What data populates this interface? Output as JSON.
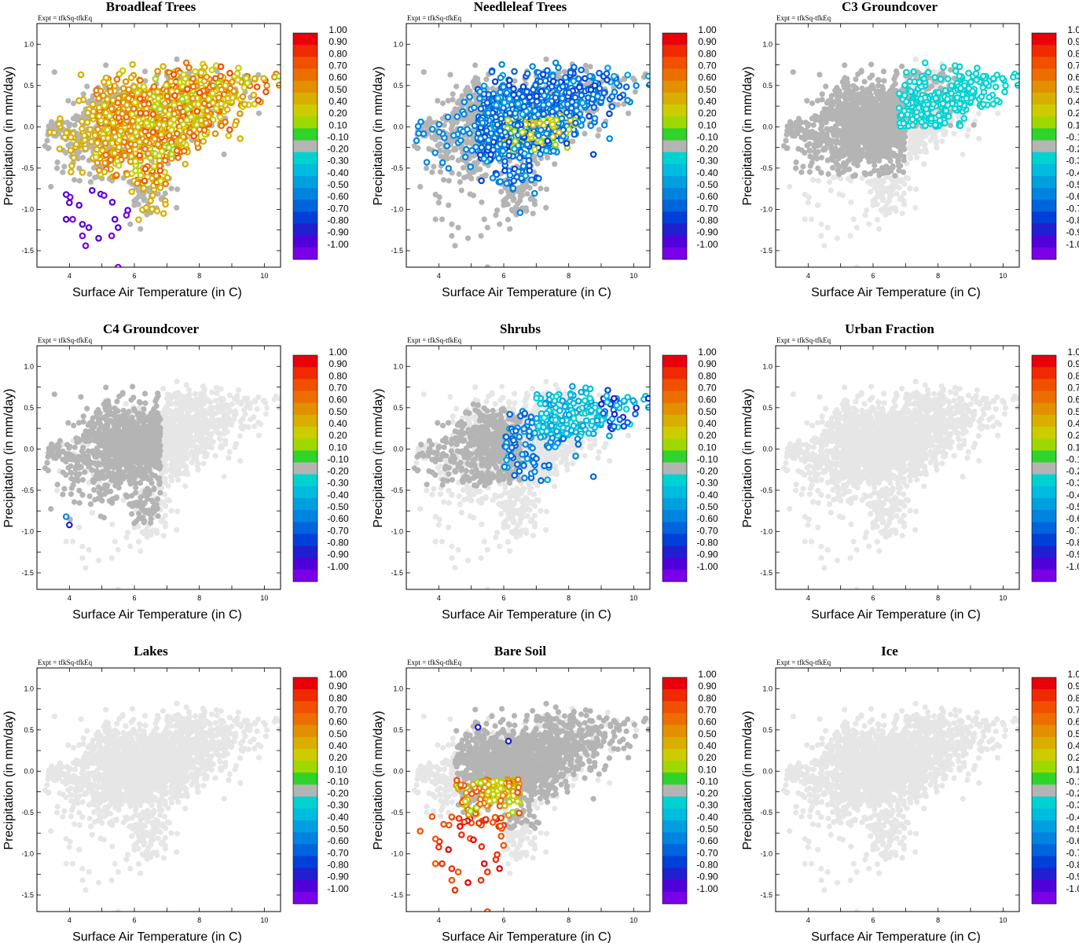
{
  "figure": {
    "expt_label": "Expt = tfkSq-tfkEq",
    "xlabel": "Surface Air Temperature (in C)",
    "ylabel": "Precipitation (in mm/day)",
    "xlim": [
      3,
      10.5
    ],
    "ylim": [
      -1.7,
      1.25
    ],
    "x_ticks": [
      "4",
      "6",
      "8",
      "10"
    ],
    "y_ticks": [
      "1.0",
      "0.5",
      "0.0",
      "-0.5",
      "-1.0",
      "-1.5"
    ],
    "colorbar": {
      "labels": [
        "1.00",
        "0.90",
        "0.80",
        "0.70",
        "0.60",
        "0.50",
        "0.40",
        "0.20",
        "0.10",
        "-0.10",
        "-0.20",
        "-0.30",
        "-0.40",
        "-0.50",
        "-0.60",
        "-0.70",
        "-0.80",
        "-0.90",
        "-1.00"
      ],
      "colors": [
        "#e8000b",
        "#f02a00",
        "#f05000",
        "#ec6e00",
        "#e29000",
        "#d8ae00",
        "#cccc00",
        "#9ed800",
        "#2ed42a",
        "#b4b4b4",
        "#00d2d2",
        "#00bcde",
        "#00a0e0",
        "#0084e0",
        "#0064dc",
        "#0040d8",
        "#2020d0",
        "#5000d8",
        "#7a00e8"
      ]
    },
    "background_color": "#e6e6e6",
    "neutral_color": "#b4b4b4"
  },
  "chart_data": [
    {
      "type": "scatter",
      "title": "Broadleaf Trees",
      "mode": "broadleaf",
      "xlabel": "Surface Air Temperature (in C)",
      "ylabel": "Precipitation (in mm/day)",
      "xlim": [
        3,
        10.5
      ],
      "ylim": [
        -1.7,
        1.25
      ],
      "legend": "right colorbar",
      "note": "Points colored by correlation; mostly positive (0.1-0.8) in warm core, strong negative (-0.8 to -1.0) at cold/dry outliers"
    },
    {
      "type": "scatter",
      "title": "Needleleaf Trees",
      "mode": "needleleaf",
      "xlabel": "Surface Air Temperature (in C)",
      "ylabel": "Precipitation (in mm/day)",
      "xlim": [
        3,
        10.5
      ],
      "ylim": [
        -1.7,
        1.25
      ],
      "legend": "right colorbar",
      "note": "Mostly negative correlations (-0.2 to -0.7) in the central cluster, some positive near (7, 0)"
    },
    {
      "type": "scatter",
      "title": "C3 Groundcover",
      "mode": "c3",
      "xlabel": "Surface Air Temperature (in C)",
      "ylabel": "Precipitation (in mm/day)",
      "xlim": [
        3,
        10.5
      ],
      "ylim": [
        -1.7,
        1.25
      ],
      "legend": "right colorbar",
      "note": "Mostly neutral (-0.1 to 0.1), weak negative (-0.2) scattered in warm wet region"
    },
    {
      "type": "scatter",
      "title": "C4 Groundcover",
      "mode": "c4",
      "xlabel": "Surface Air Temperature (in C)",
      "ylabel": "Precipitation (in mm/day)",
      "xlim": [
        3,
        10.5
      ],
      "ylim": [
        -1.7,
        1.25
      ],
      "legend": "right colorbar",
      "note": "Neutral cluster in cool region, few negative points"
    },
    {
      "type": "scatter",
      "title": "Shrubs",
      "mode": "shrubs",
      "xlabel": "Surface Air Temperature (in C)",
      "ylabel": "Precipitation (in mm/day)",
      "xlim": [
        3,
        10.5
      ],
      "ylim": [
        -1.7,
        1.25
      ],
      "legend": "right colorbar",
      "note": "Negative (-0.2 to -0.8) along warm/wet diagonal"
    },
    {
      "type": "scatter",
      "title": "Urban Fraction",
      "mode": "none",
      "xlabel": "Surface Air Temperature (in C)",
      "ylabel": "Precipitation (in mm/day)",
      "xlim": [
        3,
        10.5
      ],
      "ylim": [
        -1.7,
        1.25
      ],
      "legend": "right colorbar",
      "note": "No significant points"
    },
    {
      "type": "scatter",
      "title": "Lakes",
      "mode": "none",
      "xlabel": "Surface Air Temperature (in C)",
      "ylabel": "Precipitation (in mm/day)",
      "xlim": [
        3,
        10.5
      ],
      "ylim": [
        -1.7,
        1.25
      ],
      "legend": "right colorbar",
      "note": "No significant points"
    },
    {
      "type": "scatter",
      "title": "Bare Soil",
      "mode": "baresoil",
      "xlabel": "Surface Air Temperature (in C)",
      "ylabel": "Precipitation (in mm/day)",
      "xlim": [
        3,
        10.5
      ],
      "ylim": [
        -1.7,
        1.25
      ],
      "legend": "right colorbar",
      "note": "Strong positive (0.7-1.0) at cold/dry outliers, neutral cluster elsewhere"
    },
    {
      "type": "scatter",
      "title": "Ice",
      "mode": "none",
      "xlabel": "Surface Air Temperature (in C)",
      "ylabel": "Precipitation (in mm/day)",
      "xlim": [
        3,
        10.5
      ],
      "ylim": [
        -1.7,
        1.25
      ],
      "legend": "right colorbar",
      "note": "No significant points"
    }
  ]
}
